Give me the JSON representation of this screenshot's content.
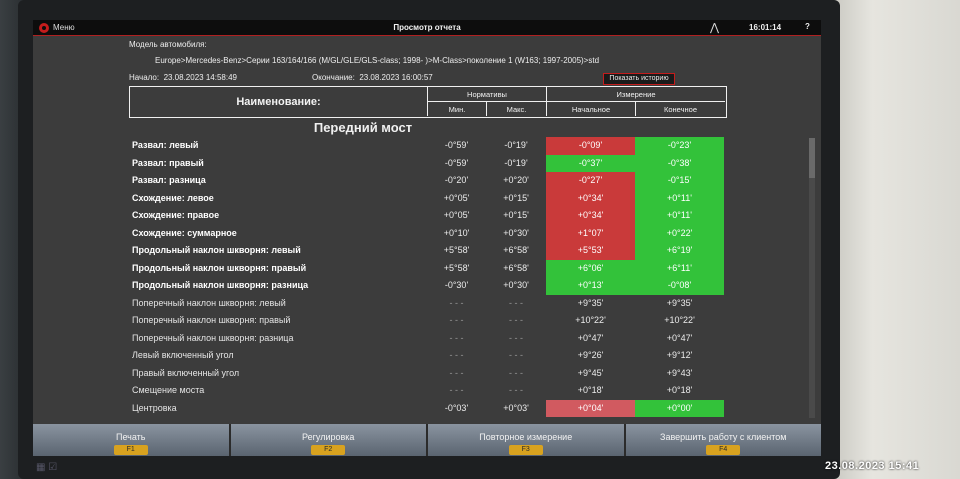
{
  "window": {
    "menu_label": "Меню",
    "title": "Просмотр отчета",
    "clock": "16:01:14",
    "help": "?"
  },
  "info": {
    "model_label": "Модель автомобиля:",
    "model_path": "Europe>Mercedes-Benz>Серии 163/164/166 (M/GL/GLE/GLS-class; 1998- )>M-Class>поколение 1 (W163; 1997-2005)>std",
    "start_label": "Начало:",
    "start_value": "23.08.2023 14:58:49",
    "end_label": "Окончание:",
    "end_value": "23.08.2023 16:00:57",
    "history_button": "Показать историю"
  },
  "header": {
    "name": "Наименование:",
    "norms": "Нормативы",
    "measure": "Измерение",
    "min": "Мин.",
    "max": "Макс.",
    "initial": "Начальное",
    "final": "Конечное"
  },
  "section_title": "Передний мост",
  "rows": [
    {
      "label": "Развал: левый",
      "min": "-0°59'",
      "max": "-0°19'",
      "initial": "-0°09'",
      "final": "-0°23'",
      "style": "bold",
      "ini_bg": "red",
      "fin_bg": "green"
    },
    {
      "label": "Развал: правый",
      "min": "-0°59'",
      "max": "-0°19'",
      "initial": "-0°37'",
      "final": "-0°38'",
      "style": "bold",
      "ini_bg": "green",
      "fin_bg": "green"
    },
    {
      "label": "Развал: разница",
      "min": "-0°20'",
      "max": "+0°20'",
      "initial": "-0°27'",
      "final": "-0°15'",
      "style": "bold",
      "ini_bg": "red",
      "fin_bg": "green"
    },
    {
      "label": "Схождение: левое",
      "min": "+0°05'",
      "max": "+0°15'",
      "initial": "+0°34'",
      "final": "+0°11'",
      "style": "bold",
      "ini_bg": "red",
      "fin_bg": "green"
    },
    {
      "label": "Схождение: правое",
      "min": "+0°05'",
      "max": "+0°15'",
      "initial": "+0°34'",
      "final": "+0°11'",
      "style": "bold",
      "ini_bg": "red",
      "fin_bg": "green"
    },
    {
      "label": "Схождение: суммарное",
      "min": "+0°10'",
      "max": "+0°30'",
      "initial": "+1°07'",
      "final": "+0°22'",
      "style": "bold",
      "ini_bg": "red",
      "fin_bg": "green"
    },
    {
      "label": "Продольный наклон шкворня: левый",
      "min": "+5°58'",
      "max": "+6°58'",
      "initial": "+5°53'",
      "final": "+6°19'",
      "style": "bold",
      "ini_bg": "red",
      "fin_bg": "green"
    },
    {
      "label": "Продольный наклон шкворня: правый",
      "min": "+5°58'",
      "max": "+6°58'",
      "initial": "+6°06'",
      "final": "+6°11'",
      "style": "bold",
      "ini_bg": "green",
      "fin_bg": "green"
    },
    {
      "label": "Продольный наклон шкворня: разница",
      "min": "-0°30'",
      "max": "+0°30'",
      "initial": "+0°13'",
      "final": "-0°08'",
      "style": "bold",
      "ini_bg": "green",
      "fin_bg": "green"
    },
    {
      "label": "Поперечный наклон шкворня: левый",
      "min": "- - -",
      "max": "- - -",
      "initial": "+9°35'",
      "final": "+9°35'",
      "style": "plain",
      "ini_bg": "none",
      "fin_bg": "none"
    },
    {
      "label": "Поперечный наклон шкворня: правый",
      "min": "- - -",
      "max": "- - -",
      "initial": "+10°22'",
      "final": "+10°22'",
      "style": "plain",
      "ini_bg": "none",
      "fin_bg": "none"
    },
    {
      "label": "Поперечный наклон шкворня: разница",
      "min": "- - -",
      "max": "- - -",
      "initial": "+0°47'",
      "final": "+0°47'",
      "style": "plain",
      "ini_bg": "none",
      "fin_bg": "none"
    },
    {
      "label": "Левый включенный угол",
      "min": "- - -",
      "max": "- - -",
      "initial": "+9°26'",
      "final": "+9°12'",
      "style": "plain",
      "ini_bg": "none",
      "fin_bg": "none"
    },
    {
      "label": "Правый включенный угол",
      "min": "- - -",
      "max": "- - -",
      "initial": "+9°45'",
      "final": "+9°43'",
      "style": "plain",
      "ini_bg": "none",
      "fin_bg": "none"
    },
    {
      "label": "Смещение моста",
      "min": "- - -",
      "max": "- - -",
      "initial": "+0°18'",
      "final": "+0°18'",
      "style": "plain",
      "ini_bg": "none",
      "fin_bg": "none"
    },
    {
      "label": "Центровка",
      "min": "-0°03'",
      "max": "+0°03'",
      "initial": "+0°04'",
      "final": "+0°00'",
      "style": "plain",
      "ini_bg": "lred",
      "fin_bg": "green"
    }
  ],
  "function_bar": [
    {
      "label": "Печать",
      "key": "F1"
    },
    {
      "label": "Регулировка",
      "key": "F2"
    },
    {
      "label": "Повторное измерение",
      "key": "F3"
    },
    {
      "label": "Завершить работу с клиентом",
      "key": "F4"
    }
  ],
  "photo_timestamp": "23.08.2023  15:41",
  "colors": {
    "out_of_range": "#c93a3a",
    "in_range": "#33c23a",
    "accent": "#c41c1c",
    "fkey": "#d8a21f"
  }
}
